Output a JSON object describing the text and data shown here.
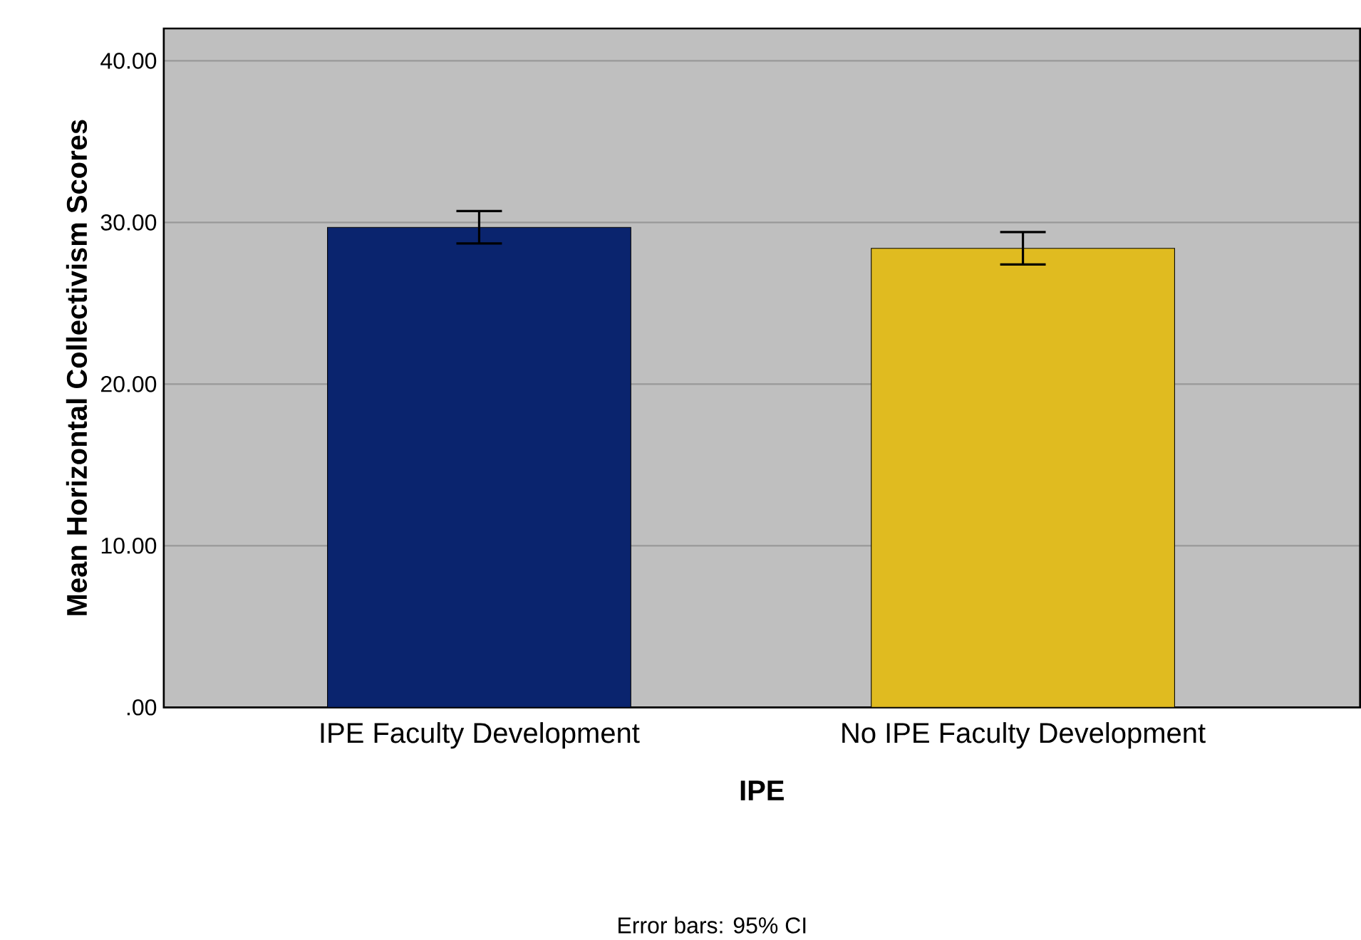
{
  "chart_data": {
    "type": "bar",
    "xlabel": "IPE",
    "ylabel": "Mean Horizontal Collectivism Scores",
    "categories": [
      "IPE Faculty Development",
      "No IPE Faculty Development"
    ],
    "values": [
      29.7,
      28.4
    ],
    "colors": [
      "#0a246e",
      "#e0bb20"
    ],
    "errors": [
      1.0,
      1.0
    ],
    "ylim": [
      0,
      42
    ],
    "yticks": [
      {
        "value": 0,
        "label": ".00"
      },
      {
        "value": 10,
        "label": "10.00"
      },
      {
        "value": 20,
        "label": "20.00"
      },
      {
        "value": 30,
        "label": "30.00"
      },
      {
        "value": 40,
        "label": "40.00"
      }
    ],
    "grid": "y",
    "annotations": [
      "Error bars: 95% CI"
    ]
  }
}
